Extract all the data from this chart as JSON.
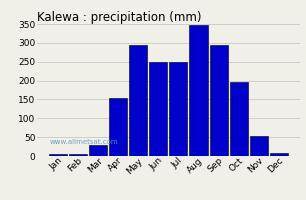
{
  "title": "Kalewa : precipitation (mm)",
  "months": [
    "Jan",
    "Feb",
    "Mar",
    "Apr",
    "May",
    "Jun",
    "Jul",
    "Aug",
    "Sep",
    "Oct",
    "Nov",
    "Dec"
  ],
  "values": [
    5,
    5,
    30,
    155,
    293,
    250,
    250,
    348,
    295,
    195,
    52,
    8
  ],
  "bar_color": "#0000CC",
  "bar_edgecolor": "#000000",
  "ylim": [
    0,
    350
  ],
  "yticks": [
    0,
    50,
    100,
    150,
    200,
    250,
    300,
    350
  ],
  "background_color": "#f0f0e8",
  "grid_color": "#c8c8c8",
  "title_fontsize": 8.5,
  "tick_fontsize": 6.5,
  "watermark": "www.allmetsat.com"
}
